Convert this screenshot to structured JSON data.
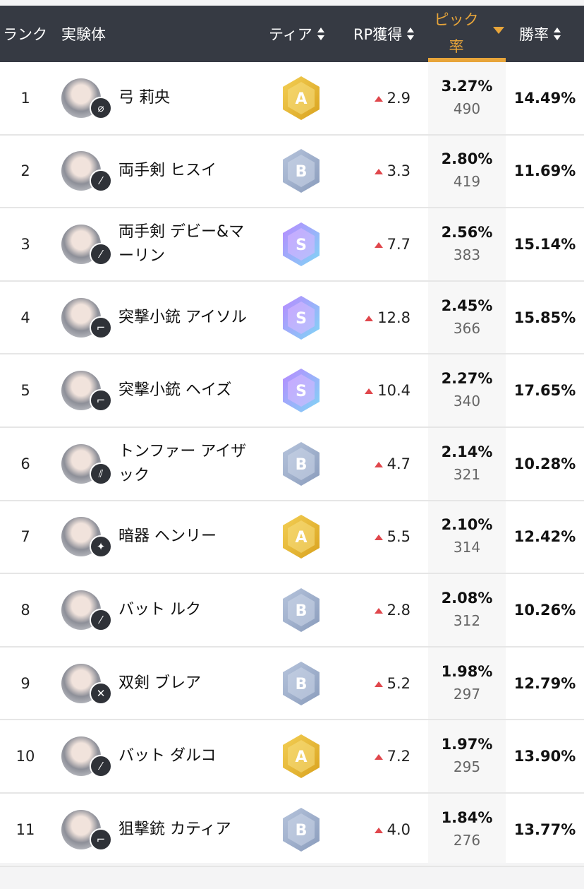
{
  "header": {
    "rank": "ランク",
    "character": "実験体",
    "tier": "ティア",
    "rp": "RP獲得",
    "pick_line1": "ピック",
    "pick_line2": "率",
    "winrate": "勝率",
    "active_sort": "pick_rate",
    "accent": "#e8a53a"
  },
  "tier_colors": {
    "S": "#a66cf0",
    "A": "#e6b630",
    "B": "#98aac8"
  },
  "rows": [
    {
      "rank": "1",
      "name": "弓 莉央",
      "weapon_icon": "bow-icon",
      "tier": "A",
      "rp": "2.9",
      "pick": "3.27%",
      "count": "490",
      "win": "14.49%"
    },
    {
      "rank": "2",
      "name": "両手剣 ヒスイ",
      "weapon_icon": "sword-icon",
      "tier": "B",
      "rp": "3.3",
      "pick": "2.80%",
      "count": "419",
      "win": "11.69%"
    },
    {
      "rank": "3",
      "name": "両手剣 デビー&マーリン",
      "weapon_icon": "sword-icon",
      "tier": "S",
      "rp": "7.7",
      "pick": "2.56%",
      "count": "383",
      "win": "15.14%"
    },
    {
      "rank": "4",
      "name": "突撃小銃 アイソル",
      "weapon_icon": "rifle-icon",
      "tier": "S",
      "rp": "12.8",
      "pick": "2.45%",
      "count": "366",
      "win": "15.85%"
    },
    {
      "rank": "5",
      "name": "突撃小銃 ヘイズ",
      "weapon_icon": "rifle-icon",
      "tier": "S",
      "rp": "10.4",
      "pick": "2.27%",
      "count": "340",
      "win": "17.65%"
    },
    {
      "rank": "6",
      "name": "トンファー アイザック",
      "weapon_icon": "tonfa-icon",
      "tier": "B",
      "rp": "4.7",
      "pick": "2.14%",
      "count": "321",
      "win": "10.28%"
    },
    {
      "rank": "7",
      "name": "暗器 ヘンリー",
      "weapon_icon": "shuriken-icon",
      "tier": "A",
      "rp": "5.5",
      "pick": "2.10%",
      "count": "314",
      "win": "12.42%"
    },
    {
      "rank": "8",
      "name": "バット ルク",
      "weapon_icon": "bat-icon",
      "tier": "B",
      "rp": "2.8",
      "pick": "2.08%",
      "count": "312",
      "win": "10.26%"
    },
    {
      "rank": "9",
      "name": "双剣 ブレア",
      "weapon_icon": "dual-swords-icon",
      "tier": "B",
      "rp": "5.2",
      "pick": "1.98%",
      "count": "297",
      "win": "12.79%"
    },
    {
      "rank": "10",
      "name": "バット ダルコ",
      "weapon_icon": "bat-icon",
      "tier": "A",
      "rp": "7.2",
      "pick": "1.97%",
      "count": "295",
      "win": "13.90%"
    },
    {
      "rank": "11",
      "name": "狙撃銃 カティア",
      "weapon_icon": "sniper-icon",
      "tier": "B",
      "rp": "4.0",
      "pick": "1.84%",
      "count": "276",
      "win": "13.77%"
    }
  ]
}
